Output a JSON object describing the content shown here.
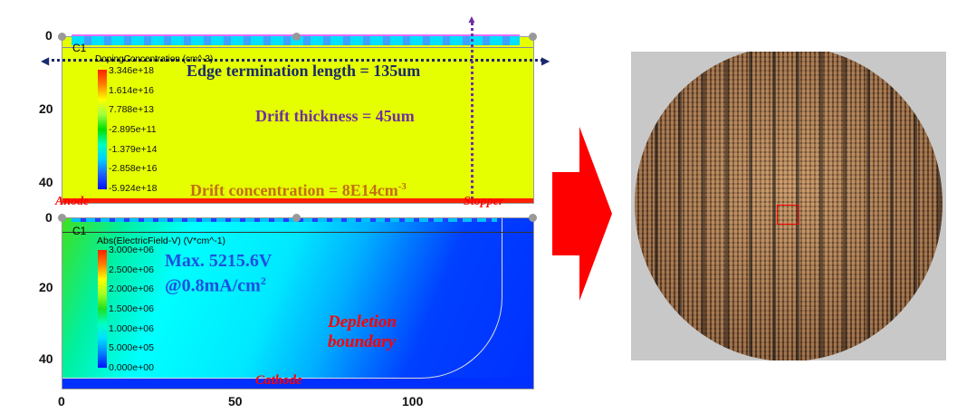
{
  "top_plot": {
    "label": "C1",
    "legend_title": "DopingConcentration (cm^-3)",
    "legend_values": [
      "3.346e+18",
      "1.614e+16",
      "7.788e+13",
      "-2.895e+11",
      "-1.379e+14",
      "-2.858e+16",
      "-5.924e+18"
    ],
    "y_ticks": [
      "0",
      "20",
      "40"
    ],
    "annotations": {
      "edge": "Edge termination length = 135um",
      "thickness": "Drift thickness = 45um",
      "concentration": "Drift concentration = 8E14cm",
      "concentration_sup": "-3",
      "anode": "Anode",
      "stopper": "Stopper"
    },
    "colors": {
      "drift": "#e5ff00",
      "anode_bar": "#ff2000",
      "edge_arrow": "#1a2a6e",
      "thickness_arrow": "#7030a0"
    }
  },
  "bottom_plot": {
    "label": "C1",
    "legend_title": "Abs(ElectricField-V) (V*cm^-1)",
    "legend_values": [
      "3.000e+06",
      "2.500e+06",
      "2.000e+06",
      "1.500e+06",
      "1.000e+06",
      "5.000e+05",
      "0.000e+00"
    ],
    "y_ticks": [
      "0",
      "20",
      "40"
    ],
    "x_ticks": [
      "0",
      "50",
      "100"
    ],
    "annotations": {
      "max_voltage": "Max. 5215.6V",
      "current": "@0.8mA/cm",
      "current_sup": "2",
      "depletion_1": "Depletion",
      "depletion_2": "boundary",
      "cathode": "Cathode"
    }
  },
  "arrow_color": "#ff0000"
}
